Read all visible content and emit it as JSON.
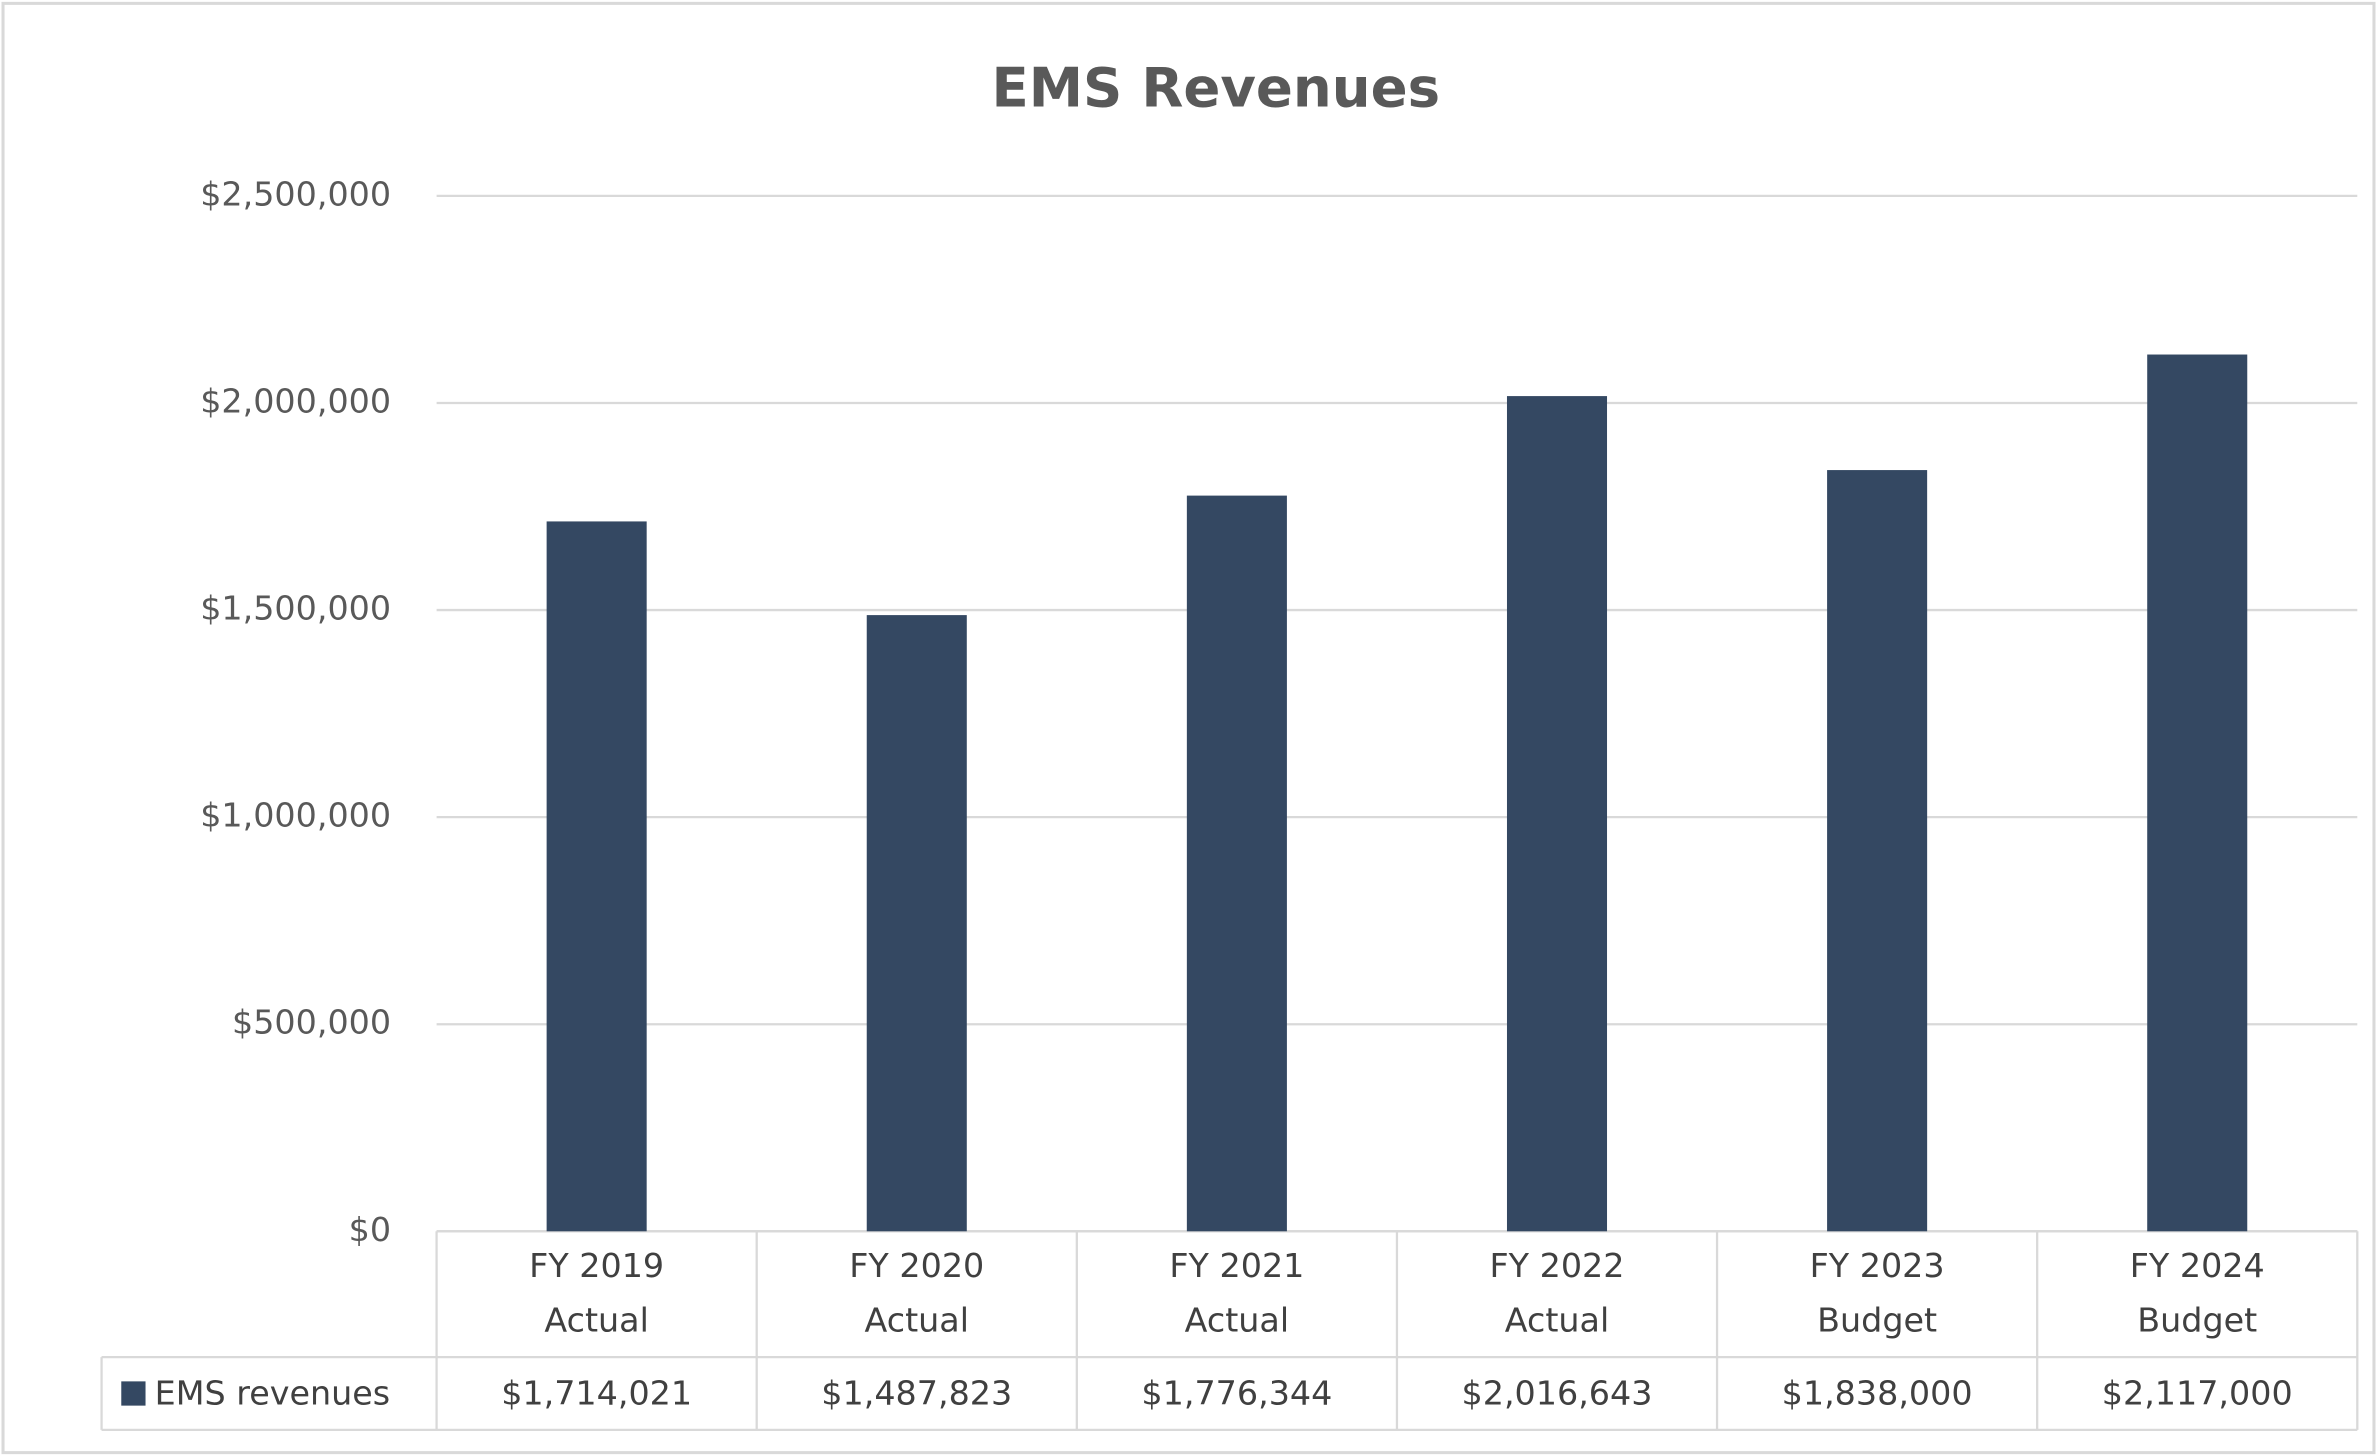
{
  "chart_data": {
    "type": "bar",
    "title": "EMS Revenues",
    "categories": [
      [
        "FY 2019",
        "Actual"
      ],
      [
        "FY 2020",
        "Actual"
      ],
      [
        "FY 2021",
        "Actual"
      ],
      [
        "FY 2022",
        "Actual"
      ],
      [
        "FY 2023",
        "Budget"
      ],
      [
        "FY 2024",
        "Budget"
      ]
    ],
    "series": [
      {
        "name": "EMS revenues",
        "color": "#344862",
        "values": [
          1714021,
          1487823,
          1776344,
          2016643,
          1838000,
          2117000
        ],
        "value_labels": [
          "$1,714,021",
          "$1,487,823",
          "$1,776,344",
          "$2,016,643",
          "$1,838,000",
          "$2,117,000"
        ]
      }
    ],
    "ylim": [
      0,
      2500000
    ],
    "yticks": [
      {
        "value": 0,
        "label": "$0"
      },
      {
        "value": 500000,
        "label": "$500,000"
      },
      {
        "value": 1000000,
        "label": "$1,000,000"
      },
      {
        "value": 1500000,
        "label": "$1,500,000"
      },
      {
        "value": 2000000,
        "label": "$2,000,000"
      },
      {
        "value": 2500000,
        "label": "$2,500,000"
      }
    ],
    "grid": true,
    "data_table": true
  }
}
